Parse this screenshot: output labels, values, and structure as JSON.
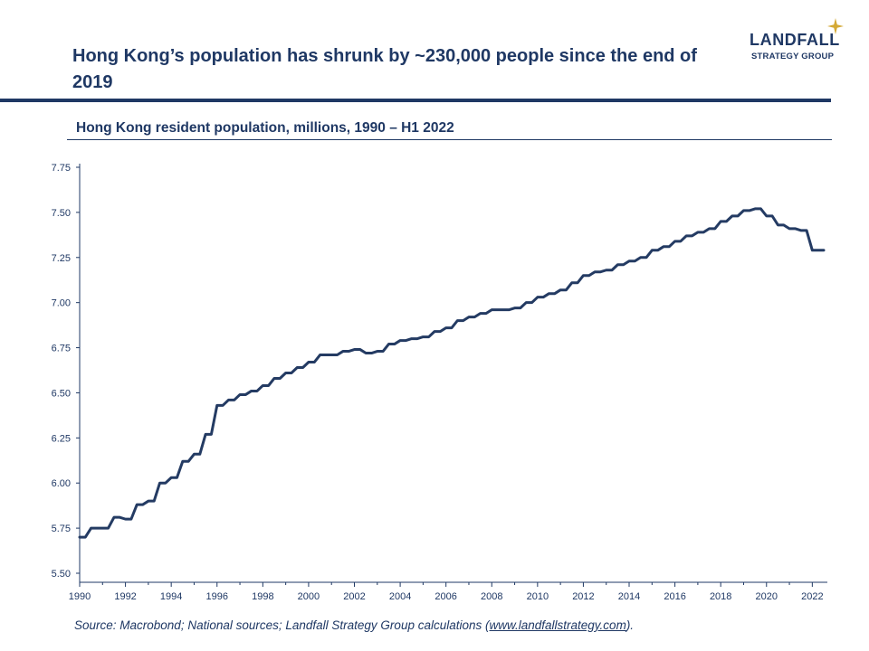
{
  "header": {
    "title": "Hong Kong’s population has shrunk by ~230,000 people since the end of 2019",
    "subtitle": "Hong Kong resident population, millions, 1990 – H1 2022"
  },
  "logo": {
    "name": "LANDFALL",
    "tagline": "STRATEGY GROUP",
    "icon": "compass-star-icon"
  },
  "footer": {
    "source_prefix": "Source: Macrobond; National sources; Landfall Strategy Group calculations (",
    "source_link": "www.landfallstrategy.com",
    "source_suffix": ")."
  },
  "colors": {
    "primary": "#1f3864",
    "line": "#243b63",
    "accent": "#d4a935"
  },
  "chart_data": {
    "type": "line",
    "title": "Hong Kong resident population, millions, 1990 – H1 2022",
    "xlabel": "",
    "ylabel": "",
    "xlim": [
      1990,
      2022.5
    ],
    "ylim": [
      5.5,
      7.75
    ],
    "yticks": [
      "5.50",
      "5.75",
      "6.00",
      "6.25",
      "6.50",
      "6.75",
      "7.00",
      "7.25",
      "7.50",
      "7.75"
    ],
    "xticks": [
      "1990",
      "1992",
      "1994",
      "1996",
      "1998",
      "2000",
      "2002",
      "2004",
      "2006",
      "2008",
      "2010",
      "2012",
      "2014",
      "2016",
      "2018",
      "2020",
      "2022"
    ],
    "series": [
      {
        "name": "Hong Kong resident population",
        "step": true,
        "x": [
          1990.0,
          1990.25,
          1990.5,
          1990.75,
          1991.0,
          1991.25,
          1991.5,
          1991.75,
          1992.0,
          1992.25,
          1992.5,
          1992.75,
          1993.0,
          1993.25,
          1993.5,
          1993.75,
          1994.0,
          1994.25,
          1994.5,
          1994.75,
          1995.0,
          1995.25,
          1995.5,
          1995.75,
          1996.0,
          1996.25,
          1996.5,
          1996.75,
          1997.0,
          1997.25,
          1997.5,
          1997.75,
          1998.0,
          1998.25,
          1998.5,
          1998.75,
          1999.0,
          1999.25,
          1999.5,
          1999.75,
          2000.0,
          2000.25,
          2000.5,
          2000.75,
          2001.0,
          2001.25,
          2001.5,
          2001.75,
          2002.0,
          2002.25,
          2002.5,
          2002.75,
          2003.0,
          2003.25,
          2003.5,
          2003.75,
          2004.0,
          2004.25,
          2004.5,
          2004.75,
          2005.0,
          2005.25,
          2005.5,
          2005.75,
          2006.0,
          2006.25,
          2006.5,
          2006.75,
          2007.0,
          2007.25,
          2007.5,
          2007.75,
          2008.0,
          2008.25,
          2008.5,
          2008.75,
          2009.0,
          2009.25,
          2009.5,
          2009.75,
          2010.0,
          2010.25,
          2010.5,
          2010.75,
          2011.0,
          2011.25,
          2011.5,
          2011.75,
          2012.0,
          2012.25,
          2012.5,
          2012.75,
          2013.0,
          2013.25,
          2013.5,
          2013.75,
          2014.0,
          2014.25,
          2014.5,
          2014.75,
          2015.0,
          2015.25,
          2015.5,
          2015.75,
          2016.0,
          2016.25,
          2016.5,
          2016.75,
          2017.0,
          2017.25,
          2017.5,
          2017.75,
          2018.0,
          2018.25,
          2018.5,
          2018.75,
          2019.0,
          2019.25,
          2019.5,
          2019.75,
          2020.0,
          2020.25,
          2020.5,
          2020.75,
          2021.0,
          2021.25,
          2021.5,
          2021.75,
          2022.0,
          2022.25
        ],
        "values": [
          5.7,
          5.7,
          5.75,
          5.75,
          5.75,
          5.75,
          5.81,
          5.81,
          5.8,
          5.8,
          5.88,
          5.88,
          5.9,
          5.9,
          6.0,
          6.0,
          6.03,
          6.03,
          6.12,
          6.12,
          6.16,
          6.16,
          6.27,
          6.27,
          6.43,
          6.43,
          6.46,
          6.46,
          6.49,
          6.49,
          6.51,
          6.51,
          6.54,
          6.54,
          6.58,
          6.58,
          6.61,
          6.61,
          6.64,
          6.64,
          6.67,
          6.67,
          6.71,
          6.71,
          6.71,
          6.71,
          6.73,
          6.73,
          6.74,
          6.74,
          6.72,
          6.72,
          6.73,
          6.73,
          6.77,
          6.77,
          6.79,
          6.79,
          6.8,
          6.8,
          6.81,
          6.81,
          6.84,
          6.84,
          6.86,
          6.86,
          6.9,
          6.9,
          6.92,
          6.92,
          6.94,
          6.94,
          6.96,
          6.96,
          6.96,
          6.96,
          6.97,
          6.97,
          7.0,
          7.0,
          7.03,
          7.03,
          7.05,
          7.05,
          7.07,
          7.07,
          7.11,
          7.11,
          7.15,
          7.15,
          7.17,
          7.17,
          7.18,
          7.18,
          7.21,
          7.21,
          7.23,
          7.23,
          7.25,
          7.25,
          7.29,
          7.29,
          7.31,
          7.31,
          7.34,
          7.34,
          7.37,
          7.37,
          7.39,
          7.39,
          7.41,
          7.41,
          7.45,
          7.45,
          7.48,
          7.48,
          7.51,
          7.51,
          7.52,
          7.52,
          7.48,
          7.48,
          7.43,
          7.43,
          7.41,
          7.41,
          7.4,
          7.4,
          7.29,
          7.29
        ]
      }
    ]
  }
}
